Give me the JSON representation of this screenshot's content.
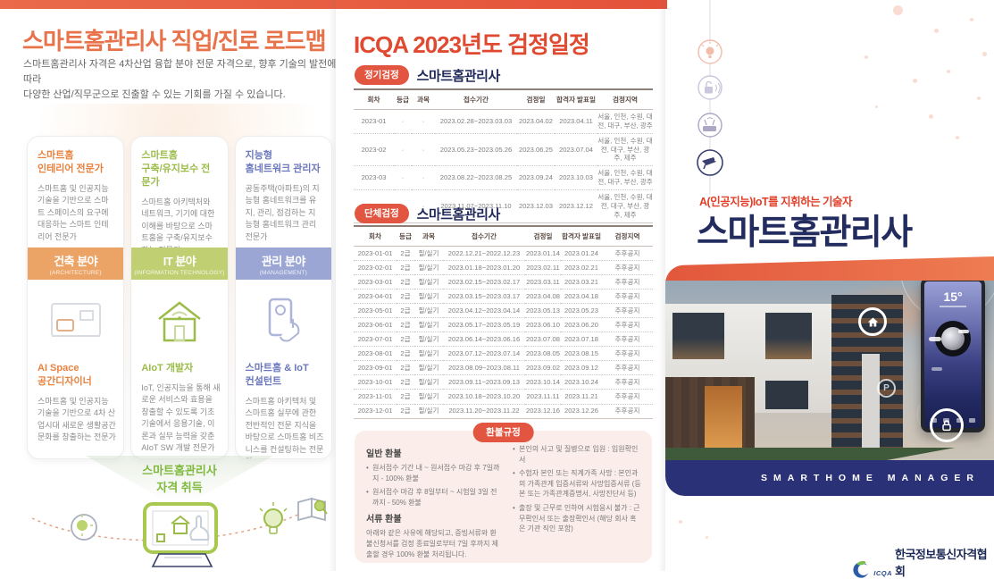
{
  "colors": {
    "primary_orange": "#E8724A",
    "primary_red": "#E04A31",
    "pill_red": "#E25541",
    "navy": "#20295A",
    "hero_navy": "#222C5E",
    "band_navy": "#2A3177",
    "green": "#7FB93E",
    "badge_orange": "#ECA466",
    "badge_green": "#C0CF72",
    "badge_purple": "#9CA6D4"
  },
  "left_panel": {
    "title": "스마트홈관리사 직업/진로 로드맵",
    "description": "스마트홈관리사 자격은 4차산업 융합 분야 전문 자격으로, 향후 기술의 발전에 따라\n다양한 산업/직무군으로 진출할 수 있는 기회를 가질 수 있습니다.",
    "cards": [
      {
        "top_title": "스마트홈\n인테리어 전문가",
        "top_body": "스마트홈 및 인공지능 기술을 기반으로 스마트 스페이스의 요구에 대응하는 스마트 인테리어 전문가",
        "badge_label": "건축 분야",
        "badge_sub": "(ARCHITECTURE)",
        "bottom_title": "AI Space\n공간디자이너",
        "bottom_body": "스마트홈 및 인공지능 기술을 기반으로 4차 산업시대 새로운 생활공간문화를 창출하는 전문가"
      },
      {
        "top_title": "스마트홈\n구축/유지보수 전문가",
        "top_body": "스마트홈 아키텍처와 네트워크, 기기에 대한 이해를 바탕으로 스마트홈을 구축/유지보수하는 전문가",
        "badge_label": "IT 분야",
        "badge_sub": "(INFORMATION TECHNOLOGY)",
        "bottom_title": "AIoT 개발자",
        "bottom_body": "IoT, 인공지능을 통해 새로운 서비스와 효용을 창출할 수 있도록 기초기술에서 응용기술, 이론과 실무 능력을 갖춘 AIoT SW 개발 전문가"
      },
      {
        "top_title": "지능형\n홈네트워크 관리자",
        "top_body": "공동주택(아파트)의 지능형 홈네트워크를 유지, 관리, 점검하는 지능형 홈네트워크 관리 전문가",
        "badge_label": "관리 분야",
        "badge_sub": "(MANAGEMENT)",
        "bottom_title": "스마트홈 & IoT\n컨설턴트",
        "bottom_body": "스마트홈 아키텍처 및 스마트홈 실무에 관한 전반적인 전문 지식을 바탕으로 스마트홈 비즈니스를 컨설팅하는 전문가"
      }
    ],
    "achievement": "스마트홈관리사\n자격 취득"
  },
  "middle_panel": {
    "title": "ICQA 2023년도 검정일정",
    "regular": {
      "badge": "정기검정",
      "subtitle": "스마트홈관리사",
      "headers": [
        "회차",
        "등급",
        "과목",
        "접수기간",
        "검정일",
        "합격자 발표일",
        "검정지역"
      ],
      "rows": [
        [
          "2023-01",
          "·",
          "·",
          "2023.02.28~2023.03.03",
          "2023.04.02",
          "2023.04.11",
          "서울, 인천, 수원, 대전, 대구, 부산, 광주"
        ],
        [
          "2023-02",
          "·",
          "·",
          "2023.05.23~2023.05.26",
          "2023.06.25",
          "2023.07.04",
          "서울, 인천, 수원, 대전, 대구, 부산, 광주, 제주"
        ],
        [
          "2023-03",
          "·",
          "·",
          "2023.08.22~2023.08.25",
          "2023.09.24",
          "2023.10.03",
          "서울, 인천, 수원, 대전, 대구, 부산, 광주"
        ],
        [
          "2023-04",
          "·",
          "·",
          "2023.11.07~2023.11.10",
          "2023.12.03",
          "2023.12.12",
          "서울, 인천, 수원, 대전, 대구, 부산, 광주, 제주"
        ]
      ]
    },
    "group": {
      "badge": "단체검정",
      "subtitle": "스마트홈관리사",
      "headers": [
        "회차",
        "등급",
        "과목",
        "접수기간",
        "검정일",
        "합격자 발표일",
        "검정지역"
      ],
      "rows": [
        [
          "2023-01-01",
          "2급",
          "필/실기",
          "2022.12.21~2022.12.23",
          "2023.01.14",
          "2023.01.24",
          "추후공지"
        ],
        [
          "2023-02-01",
          "2급",
          "필/실기",
          "2023.01.18~2023.01.20",
          "2023.02.11",
          "2023.02.21",
          "추후공지"
        ],
        [
          "2023-03-01",
          "2급",
          "필/실기",
          "2023.02.15~2023.02.17",
          "2023.03.11",
          "2023.03.21",
          "추후공지"
        ],
        [
          "2023-04-01",
          "2급",
          "필/실기",
          "2023.03.15~2023.03.17",
          "2023.04.08",
          "2023.04.18",
          "추후공지"
        ],
        [
          "2023-05-01",
          "2급",
          "필/실기",
          "2023.04.12~2023.04.14",
          "2023.05.13",
          "2023.05.23",
          "추후공지"
        ],
        [
          "2023-06-01",
          "2급",
          "필/실기",
          "2023.05.17~2023.05.19",
          "2023.06.10",
          "2023.06.20",
          "추후공지"
        ],
        [
          "2023-07-01",
          "2급",
          "필/실기",
          "2023.06.14~2023.06.16",
          "2023.07.08",
          "2023.07.18",
          "추후공지"
        ],
        [
          "2023-08-01",
          "2급",
          "필/실기",
          "2023.07.12~2023.07.14",
          "2023.08.05",
          "2023.08.15",
          "추후공지"
        ],
        [
          "2023-09-01",
          "2급",
          "필/실기",
          "2023.08.09~2023.08.11",
          "2023.09.02",
          "2023.09.12",
          "추후공지"
        ],
        [
          "2023-10-01",
          "2급",
          "필/실기",
          "2023.09.11~2023.09.13",
          "2023.10.14",
          "2023.10.24",
          "추후공지"
        ],
        [
          "2023-11-01",
          "2급",
          "필/실기",
          "2023.10.18~2023.10.20",
          "2023.11.11",
          "2023.11.21",
          "추후공지"
        ],
        [
          "2023-12-01",
          "2급",
          "필/실기",
          "2023.11.20~2023.11.22",
          "2023.12.16",
          "2023.12.26",
          "추후공지"
        ]
      ]
    },
    "refund": {
      "badge": "환불규정",
      "general_title": "일반 환불",
      "general_items": [
        "원서접수 기간 내 ~ 원서접수 마감 후 7일까지 - 100% 환불",
        "원서접수 마감 후 8일부터 ~ 시험일 3일 전까지 - 50% 환불"
      ],
      "doc_title": "서류 환불",
      "doc_body": "아래와 같은 사유에 해당되고, 증빙서류와 환불신청서를 검정 종료일로부터 7일 후까지 제출할 경우 100% 환불 처리됩니다.",
      "cases": [
        "본인의 사고 및 질병으로 입원 : 입원확인서",
        "수험자 본인 또는 직계가족 사망 : 본인과의 가족관계 입증서류와 사망입증서류 (등본 또는 가족관계증명서, 사망진단서 등)",
        "출장 및 근무로 인하여 시험응시 불가 : 근무확인서 또는 출장확인서 (해당 회사 혹은 기관 직인 포함)"
      ]
    }
  },
  "right_panel": {
    "tagline": "A(인공지능)IoT를 지휘하는 기술자",
    "title": "스마트홈관리사",
    "band_text": "SMARTHOME MANAGER",
    "phone_temp": "15°",
    "parking_label": "P",
    "logo_mark": "ICQA",
    "logo_text": "한국정보통신자격협회"
  }
}
